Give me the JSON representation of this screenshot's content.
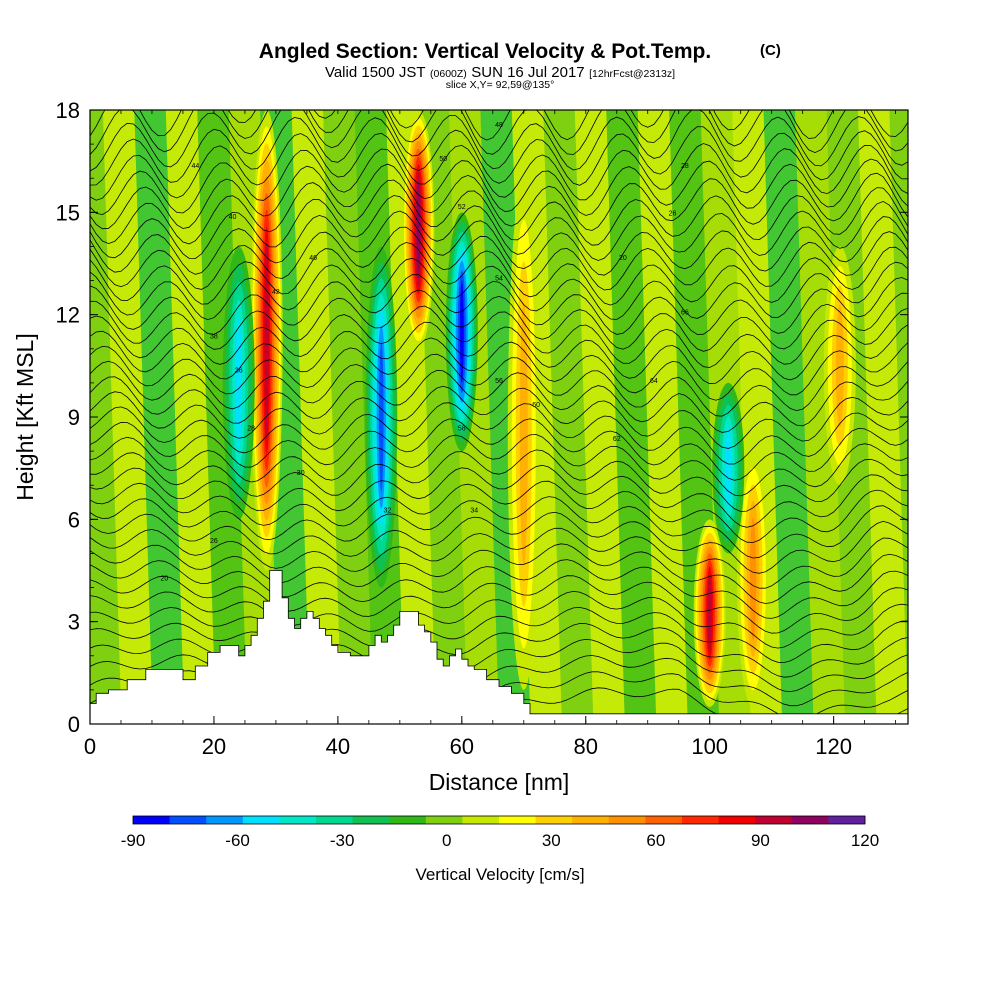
{
  "chart_data": {
    "type": "heatmap",
    "title": "Angled Section: Vertical Velocity & Pot.Temp.",
    "title_units": "(C)",
    "subtitle_prefix": "Valid 1500 JST",
    "subtitle_zulu": "(0600Z)",
    "subtitle_date": "SUN 16 Jul 2017",
    "subtitle_fcst": "[12hrFcst@2313z]",
    "slice": "slice X,Y= 92,59@135°",
    "xlabel": "Distance [nm]",
    "ylabel": "Height [Kft MSL]",
    "xlim": [
      0,
      132
    ],
    "ylim": [
      0,
      18
    ],
    "xticks": [
      "0",
      "20",
      "40",
      "60",
      "80",
      "100",
      "120"
    ],
    "yticks": [
      "0",
      "3",
      "6",
      "9",
      "12",
      "15",
      "18"
    ],
    "colorbar": {
      "label": "Vertical Velocity [cm/s]",
      "range": [
        -90,
        120
      ],
      "ticks": [
        "-90",
        "-60",
        "-30",
        "0",
        "30",
        "60",
        "90",
        "120"
      ],
      "colors": [
        "#0000ff",
        "#0050ff",
        "#0096ff",
        "#00e0ff",
        "#00e8c8",
        "#00d890",
        "#10c050",
        "#30b818",
        "#7ed010",
        "#c8e800",
        "#ffff00",
        "#ffd000",
        "#ffb000",
        "#ff9000",
        "#ff6000",
        "#ff2800",
        "#f00000",
        "#c00030",
        "#900060",
        "#6020a0"
      ],
      "band_width_cms": 10.5,
      "zero_color": "#7ed010",
      "max_color": "#6020a0"
    },
    "updrafts": [
      {
        "x": 28.5,
        "z0": 4.5,
        "z1": 18,
        "peak_cms": 90
      },
      {
        "x": 53,
        "z0": 11,
        "z1": 18,
        "peak_cms": 100
      },
      {
        "x": 100,
        "z0": 0.5,
        "z1": 6,
        "peak_cms": 95
      },
      {
        "x": 70,
        "z0": 1,
        "z1": 16,
        "peak_cms": 40
      },
      {
        "x": 107,
        "z0": 0.5,
        "z1": 8,
        "peak_cms": 55
      },
      {
        "x": 121,
        "z0": 7,
        "z1": 14,
        "peak_cms": 40
      }
    ],
    "downdrafts": [
      {
        "x": 60,
        "z0": 8,
        "z1": 15,
        "peak_cms": -85
      },
      {
        "x": 47,
        "z0": 4,
        "z1": 14,
        "peak_cms": -75
      },
      {
        "x": 24,
        "z0": 6,
        "z1": 14,
        "peak_cms": -55
      },
      {
        "x": 103,
        "z0": 5,
        "z1": 10,
        "peak_cms": -55
      }
    ],
    "terrain_height_kft": [
      [
        0,
        0.6
      ],
      [
        1,
        0.9
      ],
      [
        3,
        1.0
      ],
      [
        6,
        1.3
      ],
      [
        9,
        1.6
      ],
      [
        13,
        1.6
      ],
      [
        15,
        1.3
      ],
      [
        17,
        1.7
      ],
      [
        19,
        2.1
      ],
      [
        21,
        2.3
      ],
      [
        23,
        2.3
      ],
      [
        24,
        2.0
      ],
      [
        25,
        2.3
      ],
      [
        26,
        2.6
      ],
      [
        27,
        3.1
      ],
      [
        28,
        3.6
      ],
      [
        29,
        4.5
      ],
      [
        30,
        4.5
      ],
      [
        31,
        3.7
      ],
      [
        32,
        3.1
      ],
      [
        33,
        2.8
      ],
      [
        34,
        3.1
      ],
      [
        35,
        3.3
      ],
      [
        36,
        3.1
      ],
      [
        37,
        2.8
      ],
      [
        38,
        2.6
      ],
      [
        39,
        2.3
      ],
      [
        40,
        2.1
      ],
      [
        42,
        2.0
      ],
      [
        44,
        2.0
      ],
      [
        45,
        2.3
      ],
      [
        46,
        2.6
      ],
      [
        47,
        2.4
      ],
      [
        48,
        2.6
      ],
      [
        49,
        2.9
      ],
      [
        50,
        3.3
      ],
      [
        52,
        3.3
      ],
      [
        53,
        2.9
      ],
      [
        54,
        2.7
      ],
      [
        55,
        2.4
      ],
      [
        56,
        1.9
      ],
      [
        57,
        1.7
      ],
      [
        58,
        2.0
      ],
      [
        59,
        2.2
      ],
      [
        60,
        1.9
      ],
      [
        61,
        1.7
      ],
      [
        62,
        1.6
      ],
      [
        64,
        1.3
      ],
      [
        66,
        1.1
      ],
      [
        68,
        0.9
      ],
      [
        70,
        0.6
      ],
      [
        71,
        0.3
      ],
      [
        132,
        0.3
      ]
    ],
    "isentrope_labels": [
      "20",
      "26",
      "28",
      "30",
      "32",
      "34",
      "36",
      "38",
      "40",
      "42",
      "44",
      "46",
      "48",
      "50",
      "52",
      "54",
      "56",
      "58",
      "60",
      "62",
      "64",
      "66"
    ]
  }
}
